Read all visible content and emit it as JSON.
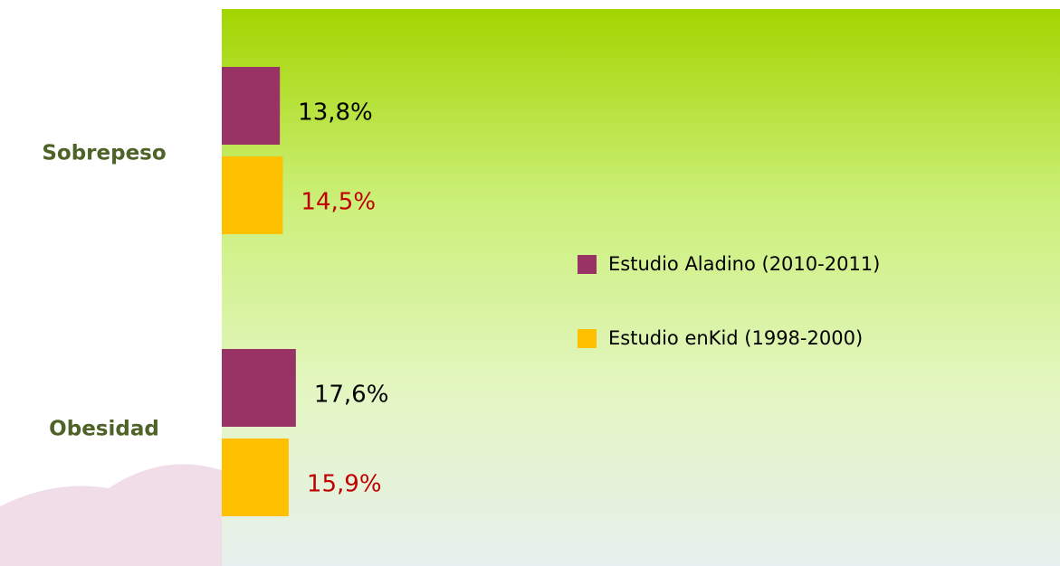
{
  "chart_data": {
    "type": "hbar",
    "categories": [
      "Sobrepeso",
      "Obesidad"
    ],
    "series": [
      {
        "name": "Estudio Aladino (2010-2011)",
        "color": "#993366",
        "label_color": "#000000",
        "values": [
          13.8,
          17.6
        ],
        "value_labels": [
          "13,8%",
          "17,6%"
        ]
      },
      {
        "name": "Estudio enKid (1998-2000)",
        "color": "#ffc000",
        "label_color": "#c00000",
        "values": [
          14.5,
          15.9
        ],
        "value_labels": [
          "14,5%",
          "15,9%"
        ]
      }
    ],
    "legend": "right"
  }
}
